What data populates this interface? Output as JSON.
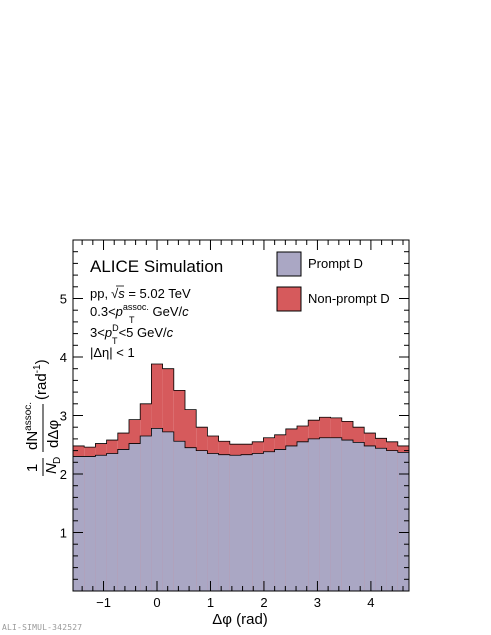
{
  "chart_data": {
    "type": "area",
    "title": "ALICE Simulation",
    "annotations": {
      "system": "pp,",
      "sqrt_symbol": "√",
      "sqrt_var": "s",
      "energy": " = 5.02 TeV",
      "assoc_min": "0.3<",
      "p_letter": "p",
      "T": "T",
      "assoc_sup": "assoc.",
      "gev_c": " GeV/",
      "c": "c",
      "d_min": "3<",
      "d_sup": "D",
      "d_max": "<5 GeV/",
      "eta_cut": "|Δη| < 1"
    },
    "xlabel": "Δφ (rad)",
    "ylabel": {
      "one": "1",
      "N": "N",
      "D": "D",
      "dN": "dN",
      "assoc": "assoc.",
      "dDeltaPhi": "dΔφ",
      "unit": "(rad",
      "unit_sup": "-1",
      "unit_close": ")"
    },
    "xlim": [
      -1.5708,
      4.7124
    ],
    "ylim": [
      0,
      6.0
    ],
    "x_ticks": [
      -1,
      0,
      1,
      2,
      3,
      4
    ],
    "x_tick_labels": [
      "−1",
      "0",
      "1",
      "2",
      "3",
      "4"
    ],
    "y_ticks": [
      1,
      2,
      3,
      4,
      5
    ],
    "y_tick_labels": [
      "1",
      "2",
      "3",
      "4",
      "5"
    ],
    "bin_edges": [
      -1.5708,
      -1.3614,
      -1.1519,
      -0.9425,
      -0.733,
      -0.5236,
      -0.3142,
      -0.1047,
      0.1047,
      0.3142,
      0.5236,
      0.733,
      0.9425,
      1.1519,
      1.3614,
      1.5708,
      1.7802,
      1.9897,
      2.1991,
      2.4086,
      2.618,
      2.8274,
      3.0369,
      3.2463,
      3.4558,
      3.6652,
      3.8746,
      4.0841,
      4.2935,
      4.5029,
      4.7124
    ],
    "series": [
      {
        "name": "Prompt D",
        "color": "#aaa7c4",
        "values": [
          2.3,
          2.3,
          2.32,
          2.35,
          2.42,
          2.52,
          2.65,
          2.78,
          2.72,
          2.56,
          2.45,
          2.4,
          2.35,
          2.33,
          2.32,
          2.33,
          2.35,
          2.38,
          2.42,
          2.48,
          2.55,
          2.6,
          2.62,
          2.62,
          2.58,
          2.54,
          2.48,
          2.44,
          2.4,
          2.37
        ]
      },
      {
        "name": "Non-prompt D",
        "color": "#d65a5c",
        "values": [
          2.48,
          2.46,
          2.52,
          2.58,
          2.7,
          2.93,
          3.2,
          3.88,
          3.8,
          3.43,
          3.1,
          2.8,
          2.65,
          2.56,
          2.51,
          2.51,
          2.55,
          2.62,
          2.67,
          2.77,
          2.82,
          2.92,
          2.97,
          2.96,
          2.9,
          2.8,
          2.7,
          2.61,
          2.55,
          2.48
        ]
      }
    ],
    "grid": false,
    "legend_position": "top-right"
  },
  "watermark": "ALI-SIMUL-342527"
}
